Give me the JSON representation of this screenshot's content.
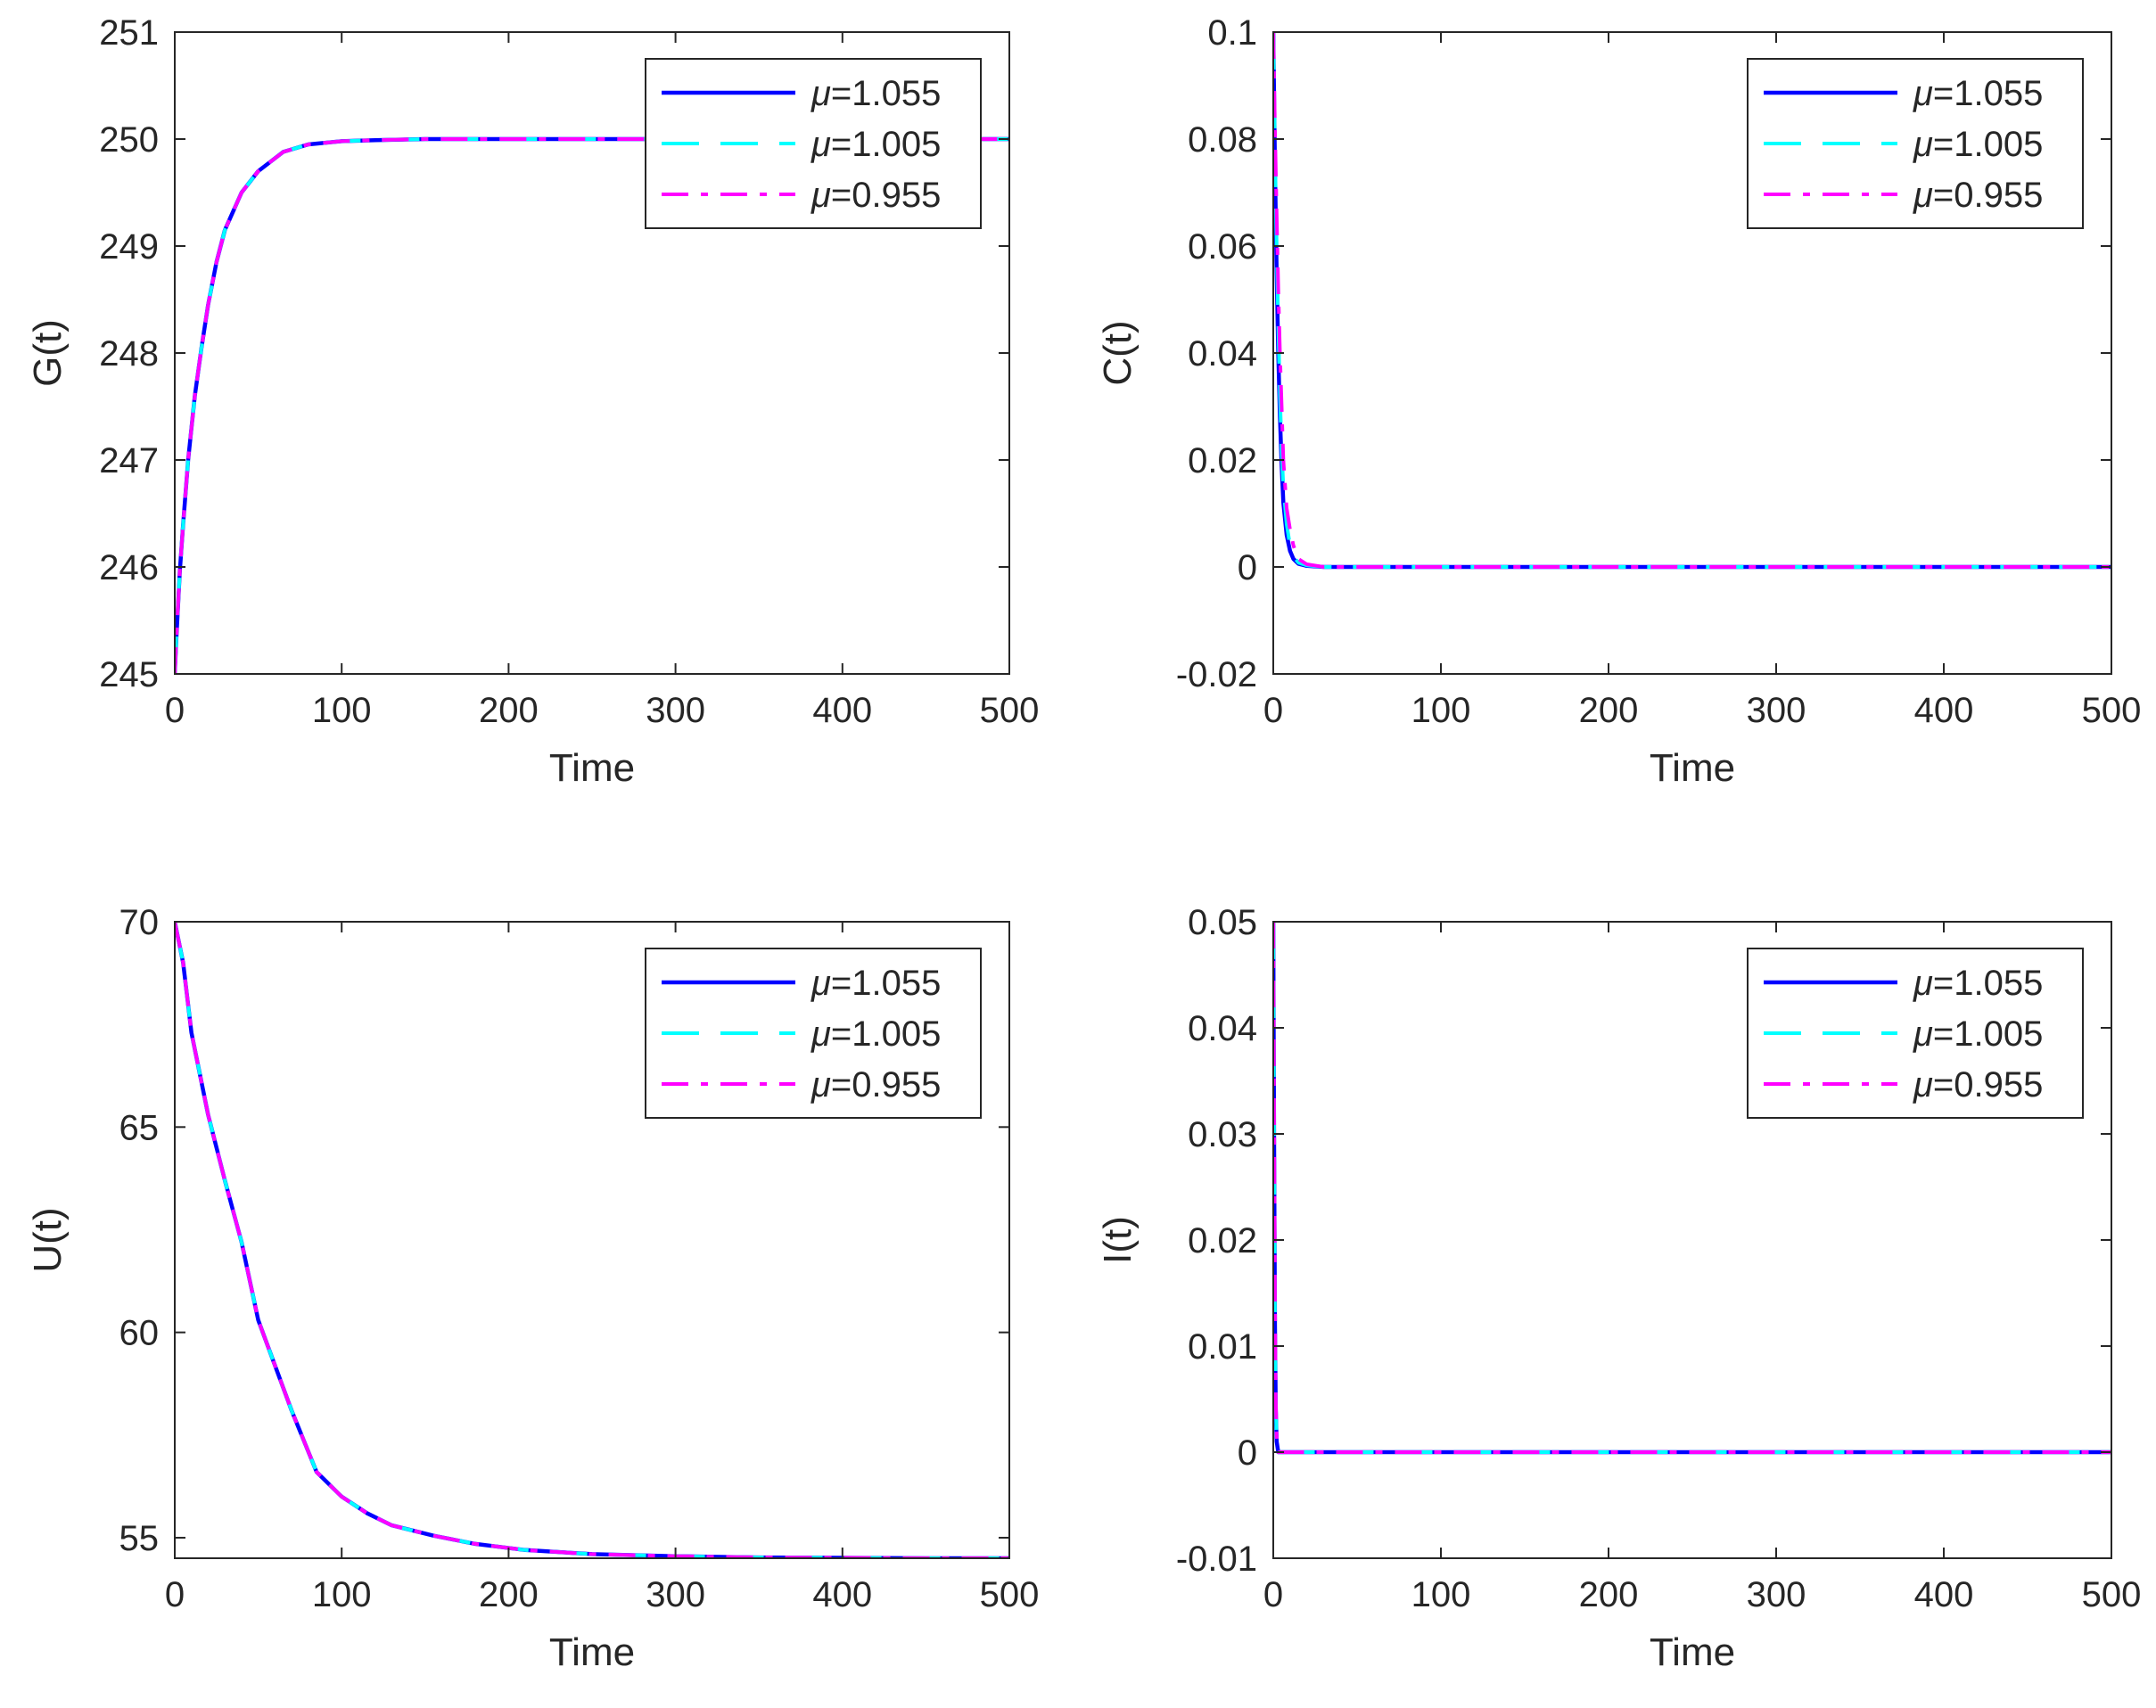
{
  "figure": {
    "legend_entries": [
      {
        "label": "=1.055",
        "symbol": "μ",
        "color": "#0000FF",
        "style": "solid"
      },
      {
        "label": "=1.005",
        "symbol": "μ",
        "color": "#00FFFF",
        "style": "dashed"
      },
      {
        "label": "=0.955",
        "symbol": "μ",
        "color": "#FF00FF",
        "style": "dashdot"
      }
    ]
  },
  "chart_data": [
    {
      "type": "line",
      "ylabel": "G(t)",
      "xlabel": "Time",
      "xlim": [
        0,
        500
      ],
      "ylim": [
        245,
        251
      ],
      "xticks": [
        0,
        100,
        200,
        300,
        400,
        500
      ],
      "yticks": [
        245,
        246,
        247,
        248,
        249,
        250,
        251
      ],
      "ytick_labels": [
        "245",
        "246",
        "247",
        "248",
        "249",
        "250",
        "251"
      ],
      "legend_position": "top-right",
      "x": [
        0,
        1,
        3,
        5,
        8,
        12,
        16,
        20,
        25,
        30,
        40,
        50,
        65,
        80,
        100,
        120,
        150,
        200,
        300,
        400,
        500
      ],
      "series": [
        {
          "name": "μ=1.055",
          "values": [
            245.0,
            245.35,
            245.95,
            246.4,
            247.0,
            247.6,
            248.05,
            248.45,
            248.85,
            249.15,
            249.5,
            249.7,
            249.88,
            249.95,
            249.98,
            249.99,
            250.0,
            250.0,
            250.0,
            250.0,
            250.0
          ]
        },
        {
          "name": "μ=1.005",
          "values": [
            245.0,
            245.35,
            245.95,
            246.4,
            247.0,
            247.6,
            248.05,
            248.45,
            248.85,
            249.15,
            249.5,
            249.7,
            249.88,
            249.95,
            249.98,
            249.99,
            250.0,
            250.0,
            250.0,
            250.0,
            250.0
          ]
        },
        {
          "name": "μ=0.955",
          "values": [
            245.0,
            245.35,
            245.95,
            246.4,
            247.0,
            247.6,
            248.05,
            248.45,
            248.85,
            249.15,
            249.5,
            249.7,
            249.88,
            249.95,
            249.98,
            249.99,
            250.0,
            250.0,
            250.0,
            250.0,
            250.0
          ]
        }
      ]
    },
    {
      "type": "line",
      "ylabel": "C(t)",
      "xlabel": "Time",
      "xlim": [
        0,
        500
      ],
      "ylim": [
        -0.02,
        0.1
      ],
      "xticks": [
        0,
        100,
        200,
        300,
        400,
        500
      ],
      "yticks": [
        -0.02,
        0,
        0.02,
        0.04,
        0.06,
        0.08,
        0.1
      ],
      "ytick_labels": [
        "-0.02",
        "0",
        "0.02",
        "0.04",
        "0.06",
        "0.08",
        "0.1"
      ],
      "legend_position": "top-right",
      "x": [
        0,
        1,
        2,
        3,
        4,
        5,
        6,
        8,
        10,
        12,
        15,
        20,
        30,
        50,
        100,
        200,
        300,
        400,
        500
      ],
      "series": [
        {
          "name": "μ=1.055",
          "values": [
            0.1,
            0.075,
            0.055,
            0.04,
            0.028,
            0.019,
            0.012,
            0.006,
            0.003,
            0.0015,
            0.0006,
            0.0002,
            0.0,
            0.0,
            0.0,
            0.0,
            0.0,
            0.0,
            0.0
          ]
        },
        {
          "name": "μ=1.005",
          "values": [
            0.1,
            0.078,
            0.06,
            0.045,
            0.032,
            0.022,
            0.015,
            0.008,
            0.004,
            0.002,
            0.0008,
            0.0003,
            0.0,
            0.0,
            0.0,
            0.0,
            0.0,
            0.0,
            0.0
          ]
        },
        {
          "name": "μ=0.955",
          "values": [
            0.1,
            0.082,
            0.066,
            0.052,
            0.04,
            0.03,
            0.02,
            0.011,
            0.007,
            0.004,
            0.0015,
            0.0005,
            0.0,
            0.0,
            0.0,
            0.0,
            0.0,
            0.0,
            0.0
          ]
        }
      ]
    },
    {
      "type": "line",
      "ylabel": "U(t)",
      "xlabel": "Time",
      "xlim": [
        0,
        500
      ],
      "ylim": [
        54.5,
        70
      ],
      "xticks": [
        0,
        100,
        200,
        300,
        400,
        500
      ],
      "yticks": [
        55,
        60,
        65,
        70
      ],
      "ytick_labels": [
        "55",
        "60",
        "65",
        "70"
      ],
      "legend_position": "top-right",
      "x": [
        0,
        5,
        10,
        20,
        30,
        40,
        50,
        60,
        70,
        85,
        100,
        115,
        130,
        155,
        180,
        210,
        250,
        300,
        350,
        400,
        450,
        500
      ],
      "series": [
        {
          "name": "μ=1.055",
          "values": [
            70.0,
            69.0,
            67.3,
            65.3,
            63.7,
            62.2,
            60.3,
            59.2,
            58.1,
            56.6,
            56.0,
            55.6,
            55.3,
            55.05,
            54.85,
            54.7,
            54.6,
            54.55,
            54.52,
            54.51,
            54.5,
            54.5
          ]
        },
        {
          "name": "μ=1.005",
          "values": [
            70.0,
            69.0,
            67.3,
            65.3,
            63.7,
            62.2,
            60.3,
            59.2,
            58.1,
            56.6,
            56.0,
            55.6,
            55.3,
            55.05,
            54.85,
            54.7,
            54.6,
            54.55,
            54.52,
            54.51,
            54.5,
            54.5
          ]
        },
        {
          "name": "μ=0.955",
          "values": [
            70.0,
            69.0,
            67.3,
            65.3,
            63.7,
            62.2,
            60.3,
            59.2,
            58.1,
            56.6,
            56.0,
            55.6,
            55.3,
            55.05,
            54.85,
            54.7,
            54.6,
            54.55,
            54.52,
            54.51,
            54.5,
            54.5
          ]
        }
      ]
    },
    {
      "type": "line",
      "ylabel": "I(t)",
      "xlabel": "Time",
      "xlim": [
        0,
        500
      ],
      "ylim": [
        -0.01,
        0.05
      ],
      "xticks": [
        0,
        100,
        200,
        300,
        400,
        500
      ],
      "yticks": [
        -0.01,
        0,
        0.01,
        0.02,
        0.03,
        0.04,
        0.05
      ],
      "ytick_labels": [
        "-0.01",
        "0",
        "0.01",
        "0.02",
        "0.03",
        "0.04",
        "0.05"
      ],
      "legend_position": "top-right",
      "x": [
        0,
        0.5,
        1,
        1.5,
        2,
        3,
        5,
        500
      ],
      "series": [
        {
          "name": "μ=1.055",
          "values": [
            0.05,
            0.03,
            0.012,
            0.004,
            0.001,
            0.0,
            0.0,
            0.0
          ]
        },
        {
          "name": "μ=1.005",
          "values": [
            0.05,
            0.031,
            0.013,
            0.0045,
            0.0012,
            0.0,
            0.0,
            0.0
          ]
        },
        {
          "name": "μ=0.955",
          "values": [
            0.05,
            0.033,
            0.015,
            0.005,
            0.0015,
            0.0,
            0.0,
            0.0
          ]
        }
      ]
    }
  ]
}
